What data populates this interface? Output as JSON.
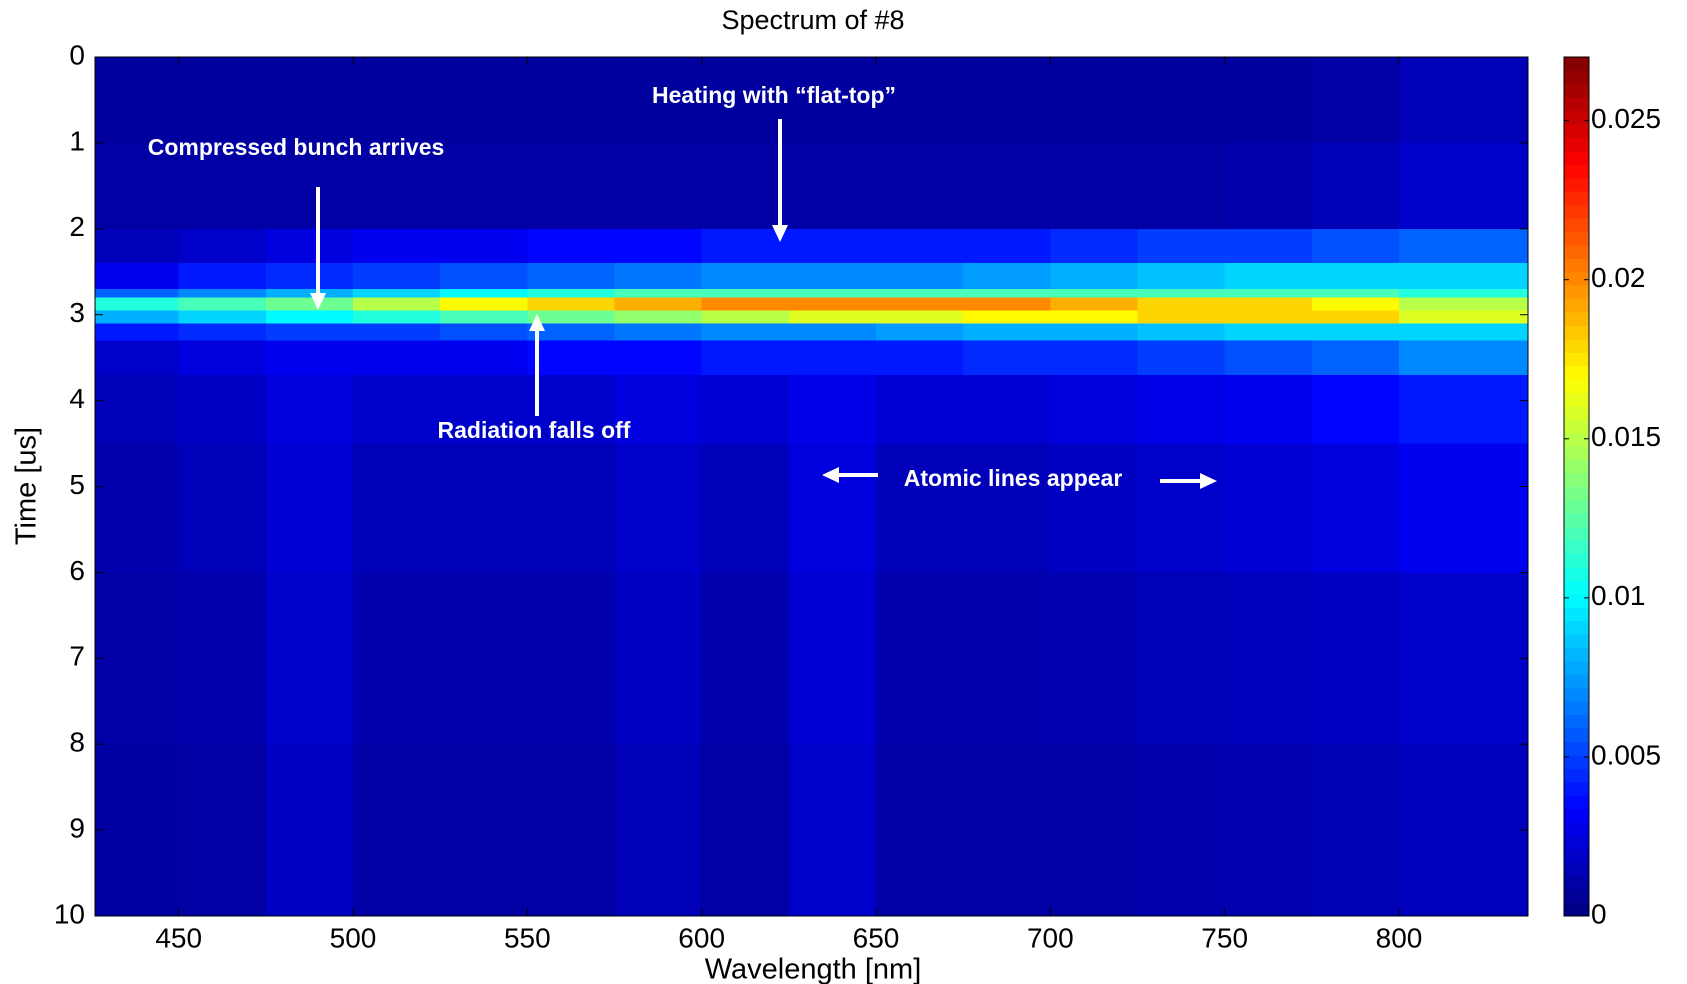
{
  "chart_data": {
    "type": "heatmap",
    "title": "Spectrum of #8",
    "x_label": "Wavelength [nm]",
    "y_label": "Time [us]",
    "xlim": [
      426,
      837
    ],
    "ylim": [
      0,
      10
    ],
    "y_reversed": true,
    "xticks": [
      450,
      500,
      550,
      600,
      650,
      700,
      750,
      800
    ],
    "yticks": [
      0,
      1,
      2,
      3,
      4,
      5,
      6,
      7,
      8,
      9,
      10
    ],
    "colormap": "jet",
    "colorbar": {
      "lim": [
        0,
        0.027
      ],
      "ticks": [
        0,
        0.005,
        0.01,
        0.015,
        0.02,
        0.025
      ]
    },
    "xbins": [
      426,
      450,
      475,
      500,
      525,
      550,
      575,
      600,
      625,
      650,
      675,
      700,
      725,
      750,
      775,
      800,
      837
    ],
    "ybins": [
      0,
      1,
      2,
      2.4,
      2.7,
      2.8,
      2.95,
      3.1,
      3.3,
      3.7,
      4.5,
      6,
      8,
      10
    ],
    "values": [
      [
        0.0008,
        0.0008,
        0.0008,
        0.0008,
        0.0008,
        0.0008,
        0.0008,
        0.0008,
        0.0008,
        0.0008,
        0.0008,
        0.0008,
        0.0008,
        0.0008,
        0.001,
        0.0015
      ],
      [
        0.001,
        0.001,
        0.001,
        0.001,
        0.001,
        0.001,
        0.001,
        0.001,
        0.001,
        0.001,
        0.001,
        0.001,
        0.001,
        0.0012,
        0.0015,
        0.002
      ],
      [
        0.0015,
        0.002,
        0.0025,
        0.003,
        0.003,
        0.0035,
        0.0035,
        0.004,
        0.004,
        0.004,
        0.004,
        0.0045,
        0.005,
        0.005,
        0.0055,
        0.006
      ],
      [
        0.003,
        0.004,
        0.0045,
        0.005,
        0.0055,
        0.006,
        0.0065,
        0.007,
        0.007,
        0.007,
        0.0075,
        0.008,
        0.0085,
        0.009,
        0.009,
        0.009
      ],
      [
        0.006,
        0.007,
        0.008,
        0.009,
        0.01,
        0.011,
        0.012,
        0.012,
        0.012,
        0.012,
        0.012,
        0.012,
        0.012,
        0.012,
        0.012,
        0.011
      ],
      [
        0.011,
        0.012,
        0.013,
        0.015,
        0.017,
        0.018,
        0.019,
        0.02,
        0.02,
        0.02,
        0.02,
        0.019,
        0.018,
        0.018,
        0.017,
        0.015
      ],
      [
        0.008,
        0.009,
        0.01,
        0.011,
        0.012,
        0.013,
        0.014,
        0.015,
        0.016,
        0.016,
        0.017,
        0.017,
        0.018,
        0.018,
        0.018,
        0.016
      ],
      [
        0.004,
        0.0045,
        0.005,
        0.005,
        0.0055,
        0.006,
        0.0065,
        0.007,
        0.007,
        0.0075,
        0.008,
        0.008,
        0.0085,
        0.009,
        0.009,
        0.009
      ],
      [
        0.002,
        0.0025,
        0.003,
        0.003,
        0.003,
        0.0035,
        0.0035,
        0.004,
        0.004,
        0.004,
        0.0045,
        0.0045,
        0.005,
        0.0055,
        0.006,
        0.007
      ],
      [
        0.0015,
        0.0018,
        0.0025,
        0.002,
        0.002,
        0.002,
        0.0025,
        0.0022,
        0.0028,
        0.0022,
        0.0022,
        0.0025,
        0.0028,
        0.003,
        0.0035,
        0.004
      ],
      [
        0.0012,
        0.0015,
        0.0022,
        0.0015,
        0.0015,
        0.0015,
        0.002,
        0.0015,
        0.0025,
        0.0015,
        0.0015,
        0.0018,
        0.002,
        0.0022,
        0.0025,
        0.003
      ],
      [
        0.001,
        0.0012,
        0.002,
        0.0012,
        0.0012,
        0.0012,
        0.0018,
        0.0012,
        0.0022,
        0.0012,
        0.0012,
        0.0013,
        0.0015,
        0.0016,
        0.0018,
        0.002
      ],
      [
        0.0009,
        0.001,
        0.0018,
        0.001,
        0.001,
        0.001,
        0.0015,
        0.001,
        0.002,
        0.001,
        0.001,
        0.001,
        0.0012,
        0.0013,
        0.0014,
        0.0016
      ]
    ],
    "annotations": [
      "Compressed bunch arrives",
      "Heating with “flat-top”",
      "Radiation falls off",
      "Atomic lines appear"
    ]
  }
}
